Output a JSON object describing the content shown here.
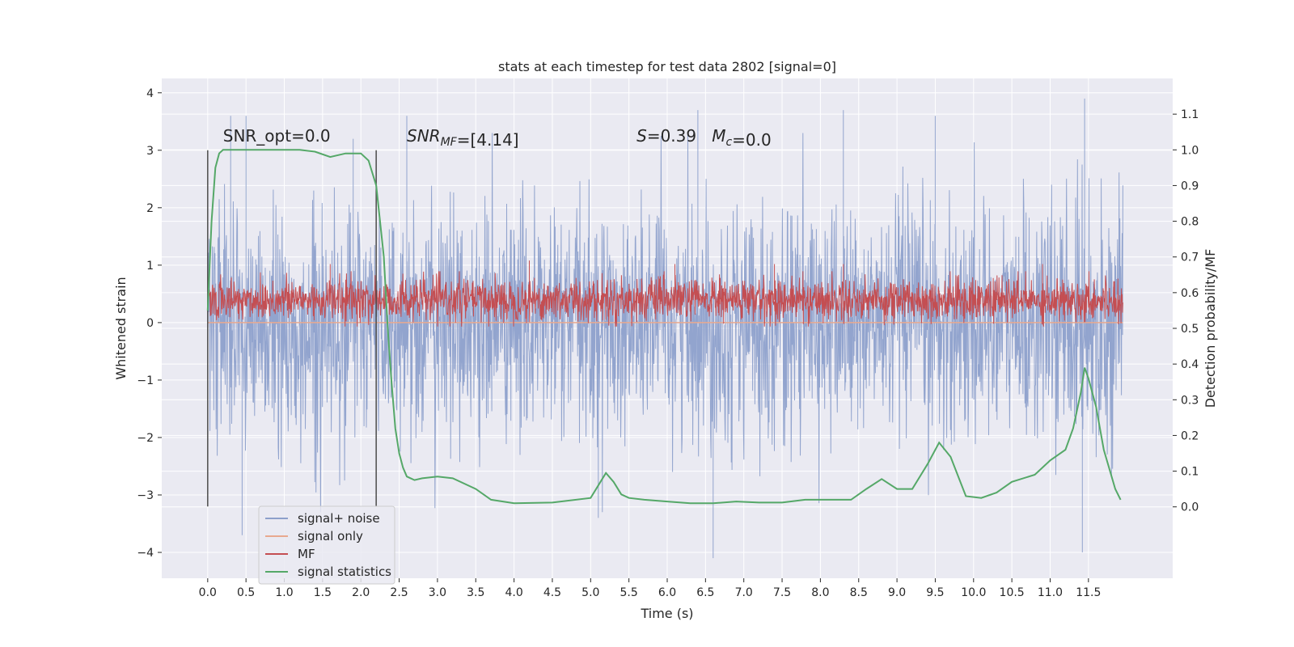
{
  "chart_data": {
    "type": "line",
    "title": "stats at each timestep for test data 2802 [signal=0]",
    "xlabel": "Time (s)",
    "ylabel_left": "Whitened strain",
    "ylabel_right": "Detection probability/MF",
    "xlim": [
      -0.6,
      12.6
    ],
    "ylim_left": [
      -4.45,
      4.25
    ],
    "ylim_right": [
      -0.2,
      1.2
    ],
    "x_ticks": [
      0.0,
      0.5,
      1.0,
      1.5,
      2.0,
      2.5,
      3.0,
      3.5,
      4.0,
      4.5,
      5.0,
      5.5,
      6.0,
      6.5,
      7.0,
      7.5,
      8.0,
      8.5,
      9.0,
      9.5,
      10.0,
      10.5,
      11.0,
      11.5
    ],
    "x_tick_labels": [
      "0.0",
      "0.5",
      "1.0",
      "1.5",
      "2.0",
      "2.5",
      "3.0",
      "3.5",
      "4.0",
      "4.5",
      "5.0",
      "5.5",
      "6.0",
      "6.5",
      "7.0",
      "7.5",
      "8.0",
      "8.5",
      "9.0",
      "9.5",
      "10.0",
      "10.5",
      "11.0",
      "11.5"
    ],
    "y_left_ticks": [
      -4,
      -3,
      -2,
      -1,
      0,
      1,
      2,
      3,
      4
    ],
    "y_left_tick_labels": [
      "−4",
      "−3",
      "−2",
      "−1",
      "0",
      "1",
      "2",
      "3",
      "4"
    ],
    "y_right_ticks": [
      0.0,
      0.1,
      0.2,
      0.3,
      0.4,
      0.5,
      0.6,
      0.7,
      0.8,
      0.9,
      1.0,
      1.1
    ],
    "y_right_tick_labels": [
      "0.0",
      "0.1",
      "0.2",
      "0.3",
      "0.4",
      "0.5",
      "0.6",
      "0.7",
      "0.8",
      "0.9",
      "1.0",
      "1.1"
    ],
    "grid": true,
    "legend_position": "lower-left",
    "series": [
      {
        "name": "signal+ noise",
        "axis": "left",
        "color": "#8da0cb",
        "style": "dense-noise",
        "x_range": [
          0.0,
          11.95
        ],
        "envelope": [
          -2.6,
          2.6
        ],
        "peak_x": [
          0.3,
          0.5,
          1.9,
          2.6,
          6.4,
          8.3,
          9.5,
          11.45,
          11.42,
          6.6,
          0.45,
          5.1
        ],
        "peak_y": [
          3.6,
          3.6,
          3.2,
          3.6,
          3.7,
          3.7,
          3.6,
          3.9,
          -4.0,
          -4.1,
          -3.7,
          -3.4
        ]
      },
      {
        "name": "signal only",
        "axis": "left",
        "color": "#e8a98f",
        "style": "line",
        "x": [
          0.0,
          11.95
        ],
        "y": [
          0.0,
          0.0
        ]
      },
      {
        "name": "MF",
        "axis": "right",
        "color": "#c44e52",
        "style": "dense-noise",
        "x_range": [
          0.0,
          11.95
        ],
        "envelope": [
          0.52,
          0.64
        ],
        "peak_x": [
          1.6,
          4.2,
          6.1,
          7.4,
          8.3,
          10.9
        ],
        "peak_y": [
          0.68,
          0.69,
          0.68,
          0.68,
          0.68,
          0.68
        ]
      },
      {
        "name": "signal statistics",
        "axis": "right",
        "color": "#55a868",
        "style": "line",
        "x": [
          0.0,
          0.05,
          0.1,
          0.15,
          0.2,
          0.3,
          0.5,
          0.8,
          1.0,
          1.2,
          1.4,
          1.6,
          1.8,
          2.0,
          2.1,
          2.2,
          2.3,
          2.35,
          2.4,
          2.45,
          2.5,
          2.55,
          2.6,
          2.7,
          2.8,
          3.0,
          3.2,
          3.5,
          3.7,
          4.0,
          4.5,
          5.0,
          5.1,
          5.2,
          5.3,
          5.4,
          5.5,
          5.7,
          6.0,
          6.3,
          6.6,
          6.9,
          7.2,
          7.5,
          7.8,
          8.0,
          8.4,
          8.6,
          8.8,
          9.0,
          9.2,
          9.4,
          9.55,
          9.7,
          9.9,
          10.1,
          10.3,
          10.5,
          10.8,
          11.0,
          11.2,
          11.3,
          11.4,
          11.45,
          11.5,
          11.6,
          11.7,
          11.85,
          11.92
        ],
        "y": [
          0.55,
          0.8,
          0.95,
          0.99,
          1.0,
          1.0,
          1.0,
          1.0,
          1.0,
          1.0,
          0.995,
          0.98,
          0.99,
          0.99,
          0.97,
          0.9,
          0.7,
          0.5,
          0.35,
          0.22,
          0.15,
          0.11,
          0.085,
          0.075,
          0.08,
          0.085,
          0.08,
          0.05,
          0.02,
          0.01,
          0.012,
          0.025,
          0.06,
          0.095,
          0.07,
          0.035,
          0.025,
          0.02,
          0.015,
          0.01,
          0.01,
          0.015,
          0.012,
          0.012,
          0.02,
          0.02,
          0.02,
          0.05,
          0.078,
          0.05,
          0.05,
          0.12,
          0.18,
          0.14,
          0.03,
          0.025,
          0.04,
          0.07,
          0.09,
          0.13,
          0.16,
          0.22,
          0.32,
          0.39,
          0.36,
          0.28,
          0.16,
          0.05,
          0.02
        ]
      }
    ],
    "vlines": [
      {
        "x": 0.0,
        "ymin": -3.2,
        "ymax": 3.0,
        "color": "#4c4c4c"
      },
      {
        "x": 2.2,
        "ymin": -3.2,
        "ymax": 3.0,
        "color": "#4c4c4c"
      }
    ],
    "annotations": [
      {
        "text": "SNR_opt=0.0",
        "x": 0.2,
        "y": 3.15
      },
      {
        "text": "SNR_MF=[4.14]",
        "x": 2.6,
        "y": 3.15
      },
      {
        "text": "S=0.39   M_c=0.0",
        "x": 5.6,
        "y": 3.15
      }
    ],
    "colors": {
      "background": "#eaeaf2",
      "grid": "#ffffff",
      "text": "#262626"
    }
  }
}
